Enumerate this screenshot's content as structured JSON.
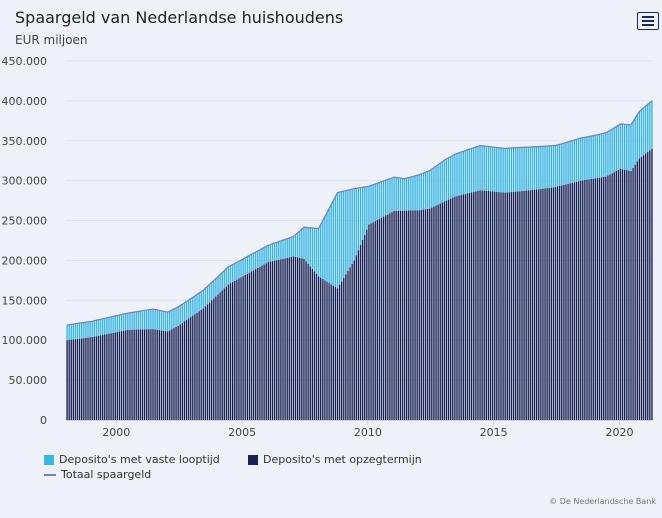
{
  "header": {
    "title": "Spaargeld van Nederlandse huishoudens",
    "subtitle": "EUR miljoen"
  },
  "menu": {
    "icon": "hamburger-menu-icon"
  },
  "credit": "© De Nederlandsche Bank",
  "colors": {
    "vaste_looptijd": "#38b6e4",
    "opzegtermijn": "#1a2254",
    "totaal": "#7a86b0",
    "grid": "#dde3ee",
    "background": "#eef2f8"
  },
  "chart_data": {
    "type": "bar",
    "stacked": true,
    "frequency": "monthly",
    "x_start": "1998-01",
    "x_end": "2021-04",
    "x_ticks": [
      "2000",
      "2005",
      "2010",
      "2015",
      "2020"
    ],
    "y_ticks": [
      "0",
      "50.000",
      "100.000",
      "150.000",
      "200.000",
      "250.000",
      "300.000",
      "350.000",
      "400.000",
      "450.000"
    ],
    "ylim": [
      0,
      450000
    ],
    "series": [
      {
        "name": "Deposito's met vaste looptijd",
        "kind": "stacked-bar-top",
        "anchors": [
          [
            "1998-01",
            19000
          ],
          [
            "2000-06",
            21000
          ],
          [
            "2001-06",
            25000
          ],
          [
            "2003-01",
            23000
          ],
          [
            "2004-06",
            22000
          ],
          [
            "2006-01",
            21000
          ],
          [
            "2007-01",
            25000
          ],
          [
            "2008-01",
            60000
          ],
          [
            "2008-10",
            120000
          ],
          [
            "2009-06",
            90000
          ],
          [
            "2010-01",
            48000
          ],
          [
            "2011-06",
            40000
          ],
          [
            "2013-01",
            52000
          ],
          [
            "2014-06",
            56000
          ],
          [
            "2016-01",
            55000
          ],
          [
            "2017-06",
            52000
          ],
          [
            "2019-01",
            54000
          ],
          [
            "2020-01",
            56000
          ],
          [
            "2020-06",
            58000
          ],
          [
            "2021-04",
            60000
          ]
        ]
      },
      {
        "name": "Deposito's met opzegtermijn",
        "kind": "stacked-bar-bottom",
        "anchors": [
          [
            "1998-01",
            100000
          ],
          [
            "1999-01",
            104000
          ],
          [
            "2000-06",
            113000
          ],
          [
            "2001-06",
            114000
          ],
          [
            "2002-01",
            111000
          ],
          [
            "2002-06",
            118000
          ],
          [
            "2003-06",
            140000
          ],
          [
            "2004-06",
            170000
          ],
          [
            "2006-01",
            198000
          ],
          [
            "2007-01",
            205000
          ],
          [
            "2007-06",
            202000
          ],
          [
            "2008-01",
            180000
          ],
          [
            "2008-10",
            165000
          ],
          [
            "2009-06",
            200000
          ],
          [
            "2010-01",
            245000
          ],
          [
            "2011-01",
            262000
          ],
          [
            "2012-01",
            263000
          ],
          [
            "2012-06",
            265000
          ],
          [
            "2013-06",
            280000
          ],
          [
            "2014-06",
            288000
          ],
          [
            "2015-06",
            285000
          ],
          [
            "2016-06",
            288000
          ],
          [
            "2017-06",
            292000
          ],
          [
            "2018-06",
            300000
          ],
          [
            "2019-06",
            305000
          ],
          [
            "2020-01",
            315000
          ],
          [
            "2020-06",
            312000
          ],
          [
            "2020-10",
            328000
          ],
          [
            "2021-04",
            340000
          ]
        ]
      },
      {
        "name": "Totaal spaargeld",
        "kind": "line",
        "note": "sum of the two deposito series"
      }
    ],
    "legend": [
      {
        "label": "Deposito's met vaste looptijd",
        "color_key": "vaste_looptijd"
      },
      {
        "label": "Deposito's met opzegtermijn",
        "color_key": "opzegtermijn"
      },
      {
        "label": "Totaal spaargeld",
        "color_key": "totaal"
      }
    ],
    "legend_position": "bottom-left",
    "grid": true
  }
}
